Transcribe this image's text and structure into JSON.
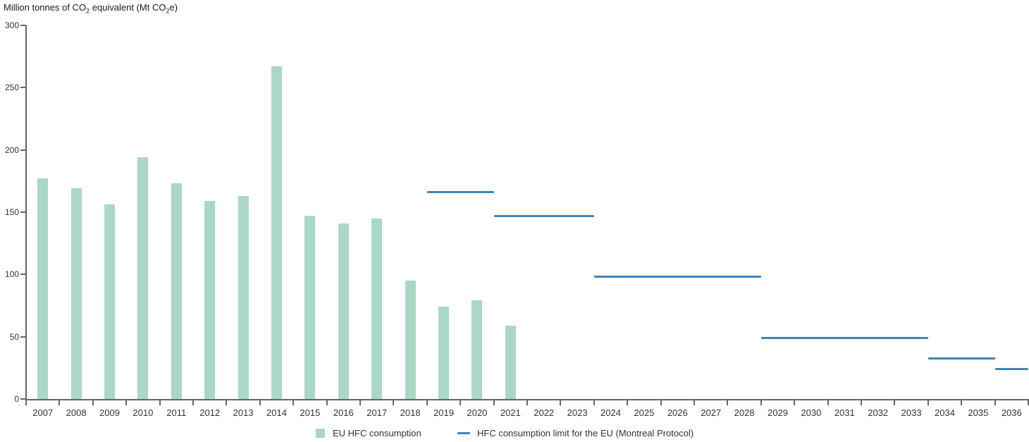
{
  "axis_title": {
    "t1": "Million tonnes of CO",
    "sub1": "2",
    "t2": " equivalent (Mt CO",
    "sub2": "2",
    "t3": "e)"
  },
  "chart_data": {
    "type": "bar",
    "title": "Million tonnes of CO2 equivalent (Mt CO2e)",
    "ylabel": "Million tonnes of CO2 equivalent (Mt CO2e)",
    "xlabel": "",
    "ylim": [
      0,
      300
    ],
    "yticks": [
      0,
      50,
      100,
      150,
      200,
      250,
      300
    ],
    "grid": false,
    "legend_position": "bottom",
    "categories": [
      "2007",
      "2008",
      "2009",
      "2010",
      "2011",
      "2012",
      "2013",
      "2014",
      "2015",
      "2016",
      "2017",
      "2018",
      "2019",
      "2020",
      "2021",
      "2022",
      "2023",
      "2024",
      "2025",
      "2026",
      "2027",
      "2028",
      "2029",
      "2030",
      "2031",
      "2032",
      "2033",
      "2034",
      "2035",
      "2036"
    ],
    "series": [
      {
        "name": "EU HFC consumption",
        "type": "bar",
        "color": "#a9d8c5",
        "x": [
          "2007",
          "2008",
          "2009",
          "2010",
          "2011",
          "2012",
          "2013",
          "2014",
          "2015",
          "2016",
          "2017",
          "2018",
          "2019",
          "2020",
          "2021"
        ],
        "values": [
          177,
          169,
          156,
          194,
          173,
          159,
          163,
          267,
          147,
          141,
          145,
          95,
          74,
          79,
          59
        ]
      },
      {
        "name": "HFC consumption limit for the EU (Montreal Protocol)",
        "type": "line",
        "color": "#4084b2",
        "segments": [
          {
            "from": "2019",
            "to": "2020",
            "value": 166
          },
          {
            "from": "2021",
            "to": "2023",
            "value": 147
          },
          {
            "from": "2024",
            "to": "2028",
            "value": 98
          },
          {
            "from": "2029",
            "to": "2033",
            "value": 49
          },
          {
            "from": "2034",
            "to": "2035",
            "value": 32.5
          },
          {
            "from": "2036",
            "to": "2036",
            "value": 24
          }
        ]
      }
    ]
  },
  "colors": {
    "axis": "#666666",
    "tick_text": "#333333",
    "title_text": "#1a1a1a",
    "bar": "#a9d8c5",
    "line": "#4084b2"
  }
}
